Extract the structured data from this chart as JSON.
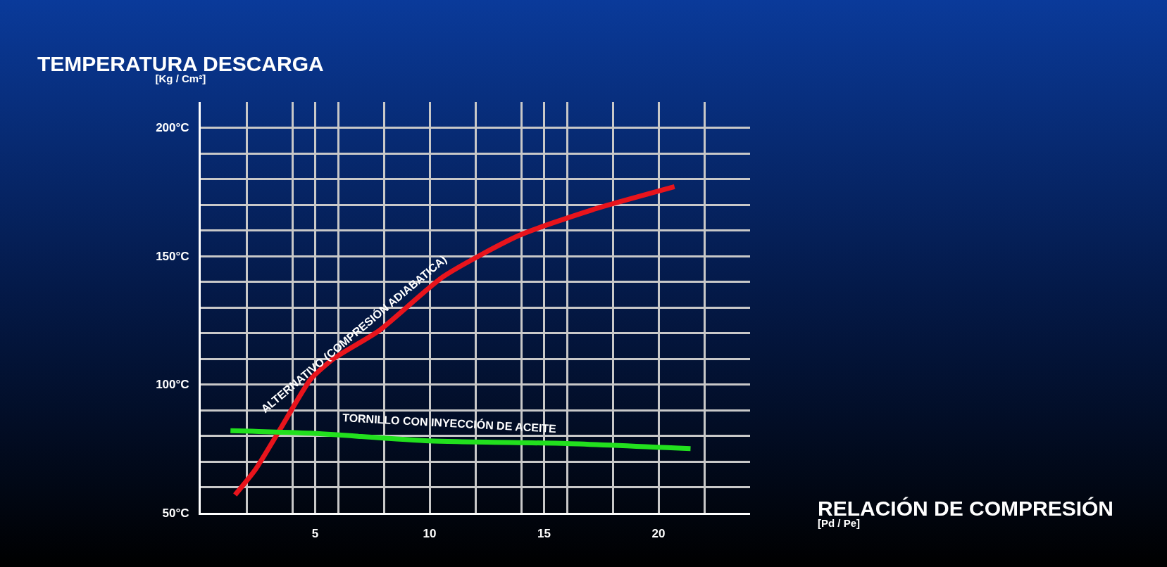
{
  "chart_data": {
    "type": "line",
    "xlabel": "RELACIÓN DE COMPRESIÓN\n[Pd / Pe]",
    "ylabel": "TEMPERATURA DESCARGA\n[Kg / Cm²]",
    "series": [
      {
        "name": "ALTERNATIVO (COMPRESIÓN ADIABATICA)",
        "color": "#e8141c",
        "x": [
          1.5,
          2.4,
          3.5,
          4.8,
          5.8,
          7.8,
          10.6,
          13.9,
          17.1,
          20.7
        ],
        "values": [
          57,
          67,
          83,
          102,
          110,
          121,
          142,
          158,
          168,
          177
        ]
      },
      {
        "name": "TORNILLO CON INYECCIÓN DE ACEITE",
        "color": "#22e01e",
        "x": [
          1.3,
          4.8,
          10,
          16,
          21.4
        ],
        "values": [
          82,
          81,
          78,
          77,
          75
        ]
      }
    ],
    "xlim": [
      0,
      24
    ],
    "ylim": [
      50,
      210
    ],
    "xticks": [
      {
        "value": 2,
        "label": null
      },
      {
        "value": 4,
        "label": null
      },
      {
        "value": 5,
        "label": "5"
      },
      {
        "value": 6,
        "label": null
      },
      {
        "value": 8,
        "label": null
      },
      {
        "value": 10,
        "label": "10"
      },
      {
        "value": 12,
        "label": null
      },
      {
        "value": 14,
        "label": null
      },
      {
        "value": 15,
        "label": "15"
      },
      {
        "value": 16,
        "label": null
      },
      {
        "value": 18,
        "label": null
      },
      {
        "value": 20,
        "label": "20"
      },
      {
        "value": 22,
        "label": null
      }
    ],
    "yticks": [
      {
        "value": 50,
        "label": "50°C"
      },
      {
        "value": 60,
        "label": null
      },
      {
        "value": 70,
        "label": null
      },
      {
        "value": 80,
        "label": null
      },
      {
        "value": 90,
        "label": null
      },
      {
        "value": 100,
        "label": "100°C"
      },
      {
        "value": 110,
        "label": null
      },
      {
        "value": 120,
        "label": null
      },
      {
        "value": 130,
        "label": null
      },
      {
        "value": 140,
        "label": null
      },
      {
        "value": 150,
        "label": "150°C"
      },
      {
        "value": 160,
        "label": null
      },
      {
        "value": 170,
        "label": null
      },
      {
        "value": 180,
        "label": null
      },
      {
        "value": 190,
        "label": null
      },
      {
        "value": 200,
        "label": "200°C"
      }
    ],
    "grid": true,
    "marker": "none",
    "line_style": "solid",
    "legend": false
  }
}
